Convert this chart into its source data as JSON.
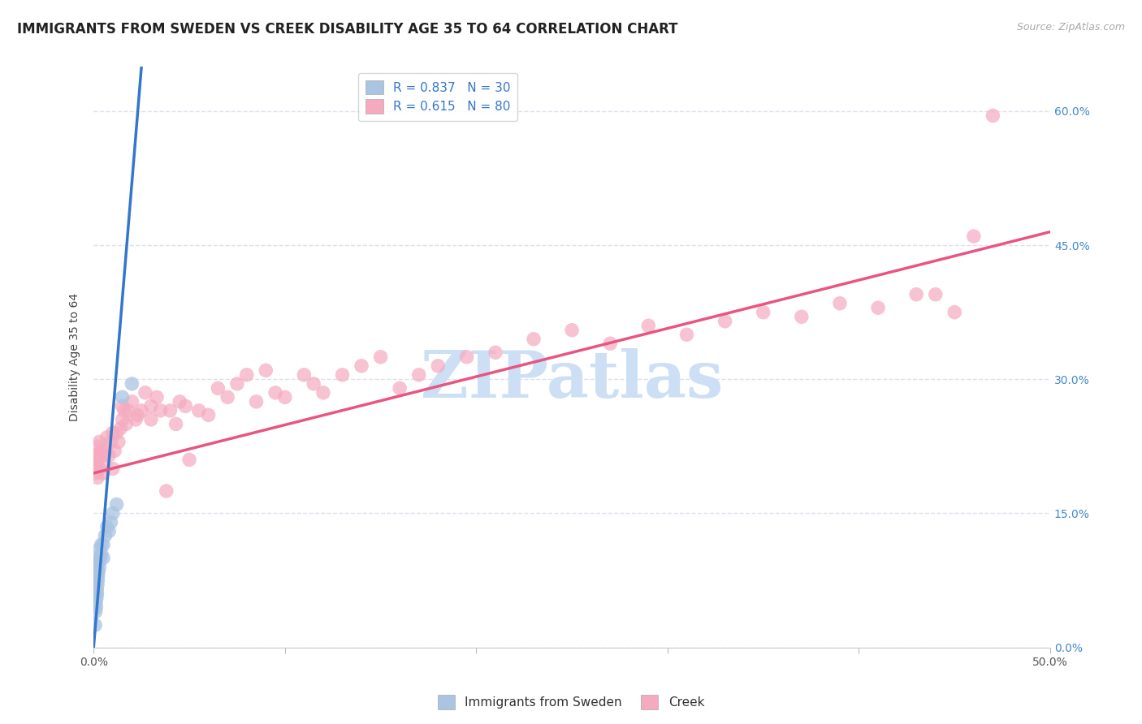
{
  "title": "IMMIGRANTS FROM SWEDEN VS CREEK DISABILITY AGE 35 TO 64 CORRELATION CHART",
  "source": "Source: ZipAtlas.com",
  "ylabel": "Disability Age 35 to 64",
  "xlim": [
    0.0,
    0.5
  ],
  "ylim": [
    0.0,
    0.65
  ],
  "xticks": [
    0.0,
    0.1,
    0.2,
    0.3,
    0.4,
    0.5
  ],
  "xticklabels": [
    "0.0%",
    "",
    "",
    "",
    "",
    "50.0%"
  ],
  "yticks": [
    0.0,
    0.15,
    0.3,
    0.45,
    0.6
  ],
  "yticklabels_right": [
    "0.0%",
    "15.0%",
    "30.0%",
    "45.0%",
    "60.0%"
  ],
  "sweden_color": "#aac4e2",
  "creek_color": "#f5aabf",
  "sweden_line_color": "#3377cc",
  "creek_line_color": "#e85580",
  "sweden_R": 0.837,
  "sweden_N": 30,
  "creek_R": 0.615,
  "creek_N": 80,
  "watermark": "ZIPatlas",
  "watermark_color": "#ccdff5",
  "legend_labels": [
    "Immigrants from Sweden",
    "Creek"
  ],
  "grid_color": "#dde0ee",
  "background_color": "#ffffff",
  "title_fontsize": 12,
  "axis_label_fontsize": 10,
  "tick_fontsize": 10,
  "legend_fontsize": 11,
  "sweden_line_x0": 0.0,
  "sweden_line_y0": 0.0,
  "sweden_line_x1": 0.025,
  "sweden_line_y1": 0.65,
  "creek_line_x0": 0.0,
  "creek_line_y0": 0.195,
  "creek_line_x1": 0.5,
  "creek_line_y1": 0.465,
  "sweden_points_x": [
    0.0008,
    0.001,
    0.0012,
    0.0013,
    0.0015,
    0.0015,
    0.0017,
    0.0018,
    0.002,
    0.002,
    0.0022,
    0.0023,
    0.0025,
    0.0025,
    0.003,
    0.003,
    0.003,
    0.0035,
    0.004,
    0.004,
    0.005,
    0.005,
    0.006,
    0.007,
    0.008,
    0.009,
    0.01,
    0.012,
    0.015,
    0.02
  ],
  "sweden_points_y": [
    0.025,
    0.04,
    0.05,
    0.045,
    0.055,
    0.06,
    0.065,
    0.06,
    0.07,
    0.085,
    0.075,
    0.08,
    0.085,
    0.095,
    0.09,
    0.1,
    0.11,
    0.1,
    0.105,
    0.115,
    0.1,
    0.115,
    0.125,
    0.135,
    0.13,
    0.14,
    0.15,
    0.16,
    0.28,
    0.295
  ],
  "creek_points_x": [
    0.001,
    0.001,
    0.001,
    0.0015,
    0.002,
    0.002,
    0.002,
    0.003,
    0.003,
    0.003,
    0.004,
    0.004,
    0.005,
    0.005,
    0.006,
    0.007,
    0.008,
    0.009,
    0.01,
    0.01,
    0.011,
    0.012,
    0.013,
    0.014,
    0.015,
    0.015,
    0.016,
    0.017,
    0.018,
    0.02,
    0.022,
    0.023,
    0.025,
    0.027,
    0.03,
    0.03,
    0.033,
    0.035,
    0.038,
    0.04,
    0.043,
    0.045,
    0.048,
    0.05,
    0.055,
    0.06,
    0.065,
    0.07,
    0.075,
    0.08,
    0.085,
    0.09,
    0.095,
    0.1,
    0.11,
    0.115,
    0.12,
    0.13,
    0.14,
    0.15,
    0.16,
    0.17,
    0.18,
    0.195,
    0.21,
    0.23,
    0.25,
    0.27,
    0.29,
    0.31,
    0.33,
    0.35,
    0.37,
    0.39,
    0.41,
    0.43,
    0.44,
    0.45,
    0.46,
    0.47
  ],
  "creek_points_y": [
    0.195,
    0.205,
    0.215,
    0.2,
    0.19,
    0.21,
    0.225,
    0.2,
    0.215,
    0.23,
    0.205,
    0.22,
    0.195,
    0.215,
    0.22,
    0.235,
    0.215,
    0.23,
    0.2,
    0.24,
    0.22,
    0.24,
    0.23,
    0.245,
    0.255,
    0.27,
    0.265,
    0.25,
    0.265,
    0.275,
    0.255,
    0.26,
    0.265,
    0.285,
    0.255,
    0.27,
    0.28,
    0.265,
    0.175,
    0.265,
    0.25,
    0.275,
    0.27,
    0.21,
    0.265,
    0.26,
    0.29,
    0.28,
    0.295,
    0.305,
    0.275,
    0.31,
    0.285,
    0.28,
    0.305,
    0.295,
    0.285,
    0.305,
    0.315,
    0.325,
    0.29,
    0.305,
    0.315,
    0.325,
    0.33,
    0.345,
    0.355,
    0.34,
    0.36,
    0.35,
    0.365,
    0.375,
    0.37,
    0.385,
    0.38,
    0.395,
    0.395,
    0.375,
    0.46,
    0.595
  ]
}
